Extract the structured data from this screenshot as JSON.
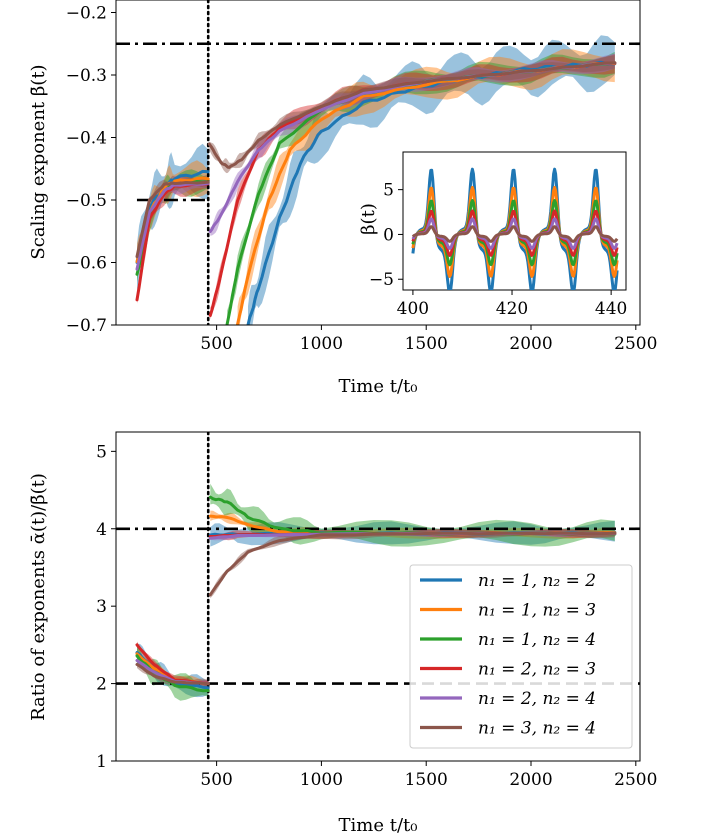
{
  "chart_data": [
    {
      "type": "line",
      "ylabel": "Scaling exponent β̄(t)",
      "xlabel": "Time t/t₀",
      "xlim": [
        20,
        2520
      ],
      "ylim": [
        -0.7,
        -0.18
      ],
      "xticks": [
        "500",
        "1000",
        "1500",
        "2000",
        "2500"
      ],
      "yticks": [
        "−0.2",
        "−0.3",
        "−0.4",
        "−0.5",
        "−0.6",
        "−0.7"
      ],
      "reference_lines": [
        {
          "style": "dash-dot",
          "y": -0.25,
          "x_range": [
            20,
            2520
          ]
        },
        {
          "style": "dash-dot",
          "y": -0.5,
          "x_range": [
            120,
            460
          ]
        },
        {
          "style": "dotted-vertical",
          "x": 460
        }
      ],
      "series": [
        {
          "name": "n1=1, n2=2",
          "color": "#1f77b4",
          "band": 0.03,
          "pre": [
            [
              120,
              -0.6
            ],
            [
              180,
              -0.51
            ],
            [
              250,
              -0.48
            ],
            [
              300,
              -0.465
            ],
            [
              460,
              -0.455
            ]
          ],
          "post": [
            [
              650,
              -0.7
            ],
            [
              700,
              -0.64
            ],
            [
              800,
              -0.53
            ],
            [
              900,
              -0.44
            ],
            [
              1000,
              -0.39
            ],
            [
              1200,
              -0.345
            ],
            [
              1400,
              -0.325
            ],
            [
              1600,
              -0.31
            ],
            [
              1800,
              -0.3
            ],
            [
              2000,
              -0.29
            ],
            [
              2200,
              -0.285
            ],
            [
              2400,
              -0.28
            ]
          ]
        },
        {
          "name": "n1=1, n2=3",
          "color": "#ff7f0e",
          "band": 0.02,
          "pre": [
            [
              120,
              -0.6
            ],
            [
              180,
              -0.52
            ],
            [
              250,
              -0.48
            ],
            [
              300,
              -0.47
            ],
            [
              460,
              -0.465
            ]
          ],
          "post": [
            [
              600,
              -0.7
            ],
            [
              650,
              -0.62
            ],
            [
              750,
              -0.5
            ],
            [
              850,
              -0.42
            ],
            [
              1000,
              -0.37
            ],
            [
              1200,
              -0.335
            ],
            [
              1500,
              -0.315
            ],
            [
              1800,
              -0.3
            ],
            [
              2100,
              -0.29
            ],
            [
              2400,
              -0.28
            ]
          ]
        },
        {
          "name": "n1=1, n2=4",
          "color": "#2ca02c",
          "band": 0.015,
          "pre": [
            [
              120,
              -0.62
            ],
            [
              180,
              -0.53
            ],
            [
              250,
              -0.485
            ],
            [
              300,
              -0.475
            ],
            [
              460,
              -0.47
            ]
          ],
          "post": [
            [
              550,
              -0.7
            ],
            [
              600,
              -0.61
            ],
            [
              700,
              -0.49
            ],
            [
              800,
              -0.41
            ],
            [
              1000,
              -0.355
            ],
            [
              1200,
              -0.33
            ],
            [
              1500,
              -0.31
            ],
            [
              1800,
              -0.3
            ],
            [
              2100,
              -0.29
            ],
            [
              2400,
              -0.28
            ]
          ]
        },
        {
          "name": "n1=2, n2=3",
          "color": "#d62728",
          "band": 0.012,
          "pre": [
            [
              120,
              -0.66
            ],
            [
              180,
              -0.53
            ],
            [
              250,
              -0.49
            ],
            [
              300,
              -0.478
            ],
            [
              460,
              -0.474
            ]
          ],
          "post": [
            [
              470,
              -0.685
            ],
            [
              520,
              -0.62
            ],
            [
              600,
              -0.5
            ],
            [
              700,
              -0.42
            ],
            [
              800,
              -0.385
            ],
            [
              1000,
              -0.35
            ],
            [
              1200,
              -0.325
            ],
            [
              1500,
              -0.31
            ],
            [
              1800,
              -0.3
            ],
            [
              2100,
              -0.29
            ],
            [
              2400,
              -0.28
            ]
          ]
        },
        {
          "name": "n1=2, n2=4",
          "color": "#9467bd",
          "band": 0.01,
          "pre": [
            [
              120,
              -0.61
            ],
            [
              180,
              -0.52
            ],
            [
              250,
              -0.485
            ],
            [
              300,
              -0.476
            ],
            [
              460,
              -0.474
            ]
          ],
          "post": [
            [
              470,
              -0.55
            ],
            [
              520,
              -0.525
            ],
            [
              600,
              -0.47
            ],
            [
              700,
              -0.42
            ],
            [
              800,
              -0.39
            ],
            [
              1000,
              -0.355
            ],
            [
              1200,
              -0.33
            ],
            [
              1500,
              -0.31
            ],
            [
              1800,
              -0.3
            ],
            [
              2100,
              -0.29
            ],
            [
              2400,
              -0.28
            ]
          ]
        },
        {
          "name": "n1=3, n2=4",
          "color": "#8c564b",
          "band": 0.008,
          "pre": [
            [
              120,
              -0.59
            ],
            [
              180,
              -0.5
            ],
            [
              250,
              -0.475
            ],
            [
              300,
              -0.473
            ],
            [
              460,
              -0.472
            ]
          ],
          "post": [
            [
              465,
              -0.41
            ],
            [
              520,
              -0.44
            ],
            [
              560,
              -0.448
            ],
            [
              620,
              -0.435
            ],
            [
              700,
              -0.405
            ],
            [
              800,
              -0.38
            ],
            [
              1000,
              -0.35
            ],
            [
              1200,
              -0.325
            ],
            [
              1500,
              -0.31
            ],
            [
              1800,
              -0.3
            ],
            [
              2100,
              -0.29
            ],
            [
              2400,
              -0.28
            ]
          ]
        }
      ],
      "inset": {
        "ylabel": "β(t)",
        "xlim": [
          398,
          443
        ],
        "ylim": [
          -6.2,
          9.2
        ],
        "xticks": [
          "400",
          "420",
          "440"
        ],
        "yticks": [
          "5",
          "0",
          "−5"
        ],
        "period": 8.3,
        "series": [
          {
            "color": "#1f77b4",
            "amplitude": 1.0
          },
          {
            "color": "#ff7f0e",
            "amplitude": 0.72
          },
          {
            "color": "#2ca02c",
            "amplitude": 0.52
          },
          {
            "color": "#d62728",
            "amplitude": 0.36
          },
          {
            "color": "#9467bd",
            "amplitude": 0.24
          },
          {
            "color": "#8c564b",
            "amplitude": 0.12
          }
        ]
      }
    },
    {
      "type": "line",
      "ylabel": "Ratio of exponents ᾱ(t)/β̄(t)",
      "xlabel": "Time t/t₀",
      "xlim": [
        20,
        2520
      ],
      "ylim": [
        1,
        5.25
      ],
      "xticks": [
        "500",
        "1000",
        "1500",
        "2000",
        "2500"
      ],
      "yticks": [
        "5",
        "4",
        "3",
        "2",
        "1"
      ],
      "reference_lines": [
        {
          "style": "dash-dot",
          "y": 4,
          "x_range": [
            20,
            2520
          ]
        },
        {
          "style": "dashed",
          "y": 2,
          "x_range": [
            20,
            2520
          ]
        },
        {
          "style": "dotted-vertical",
          "x": 460
        }
      ],
      "series": [
        {
          "name": "n1=1, n2=2",
          "color": "#1f77b4",
          "band": 0.1,
          "pre": [
            [
              120,
              2.4
            ],
            [
              200,
              2.2
            ],
            [
              300,
              2.0
            ],
            [
              460,
              1.95
            ]
          ],
          "post": [
            [
              470,
              3.92
            ],
            [
              600,
              3.93
            ],
            [
              1000,
              3.94
            ],
            [
              1500,
              3.94
            ],
            [
              2000,
              3.94
            ],
            [
              2400,
              3.95
            ]
          ]
        },
        {
          "name": "n1=1, n2=3",
          "color": "#ff7f0e",
          "band": 0.05,
          "pre": [
            [
              120,
              2.38
            ],
            [
              200,
              2.2
            ],
            [
              300,
              2.05
            ],
            [
              460,
              2.0
            ]
          ],
          "post": [
            [
              470,
              4.16
            ],
            [
              550,
              4.15
            ],
            [
              650,
              4.05
            ],
            [
              800,
              3.96
            ],
            [
              1000,
              3.94
            ],
            [
              1500,
              3.94
            ],
            [
              2000,
              3.94
            ],
            [
              2400,
              3.95
            ]
          ]
        },
        {
          "name": "n1=1, n2=4",
          "color": "#2ca02c",
          "band": 0.12,
          "pre": [
            [
              120,
              2.35
            ],
            [
              200,
              2.15
            ],
            [
              300,
              1.98
            ],
            [
              460,
              1.9
            ]
          ],
          "post": [
            [
              470,
              4.4
            ],
            [
              550,
              4.35
            ],
            [
              650,
              4.15
            ],
            [
              800,
              4.0
            ],
            [
              1000,
              3.95
            ],
            [
              1500,
              3.94
            ],
            [
              2000,
              3.94
            ],
            [
              2400,
              3.94
            ]
          ]
        },
        {
          "name": "n1=2, n2=3",
          "color": "#d62728",
          "band": 0.04,
          "pre": [
            [
              120,
              2.5
            ],
            [
              200,
              2.25
            ],
            [
              300,
              2.05
            ],
            [
              460,
              2.0
            ]
          ],
          "post": [
            [
              470,
              3.9
            ],
            [
              600,
              3.92
            ],
            [
              1000,
              3.93
            ],
            [
              1500,
              3.94
            ],
            [
              2000,
              3.94
            ],
            [
              2400,
              3.94
            ]
          ]
        },
        {
          "name": "n1=2, n2=4",
          "color": "#9467bd",
          "band": 0.03,
          "pre": [
            [
              120,
              2.3
            ],
            [
              200,
              2.15
            ],
            [
              300,
              2.03
            ],
            [
              460,
              2.0
            ]
          ],
          "post": [
            [
              470,
              3.88
            ],
            [
              600,
              3.91
            ],
            [
              1000,
              3.93
            ],
            [
              1500,
              3.94
            ],
            [
              2000,
              3.94
            ],
            [
              2400,
              3.94
            ]
          ]
        },
        {
          "name": "n1=3, n2=4",
          "color": "#8c564b",
          "band": 0.04,
          "pre": [
            [
              120,
              2.25
            ],
            [
              200,
              2.1
            ],
            [
              300,
              2.02
            ],
            [
              460,
              2.0
            ]
          ],
          "post": [
            [
              470,
              3.15
            ],
            [
              550,
              3.45
            ],
            [
              650,
              3.7
            ],
            [
              800,
              3.85
            ],
            [
              1000,
              3.92
            ],
            [
              1500,
              3.94
            ],
            [
              2000,
              3.94
            ],
            [
              2400,
              3.94
            ]
          ]
        }
      ],
      "legend": {
        "placement": "lower-right",
        "entries": [
          {
            "color": "#1f77b4",
            "label": "n₁ = 1, n₂ = 2"
          },
          {
            "color": "#ff7f0e",
            "label": "n₁ = 1, n₂ = 3"
          },
          {
            "color": "#2ca02c",
            "label": "n₁ = 1, n₂ = 4"
          },
          {
            "color": "#d62728",
            "label": "n₁ = 2, n₂ = 3"
          },
          {
            "color": "#9467bd",
            "label": "n₁ = 2, n₂ = 4"
          },
          {
            "color": "#8c564b",
            "label": "n₁ = 3, n₂ = 4"
          }
        ]
      }
    }
  ]
}
